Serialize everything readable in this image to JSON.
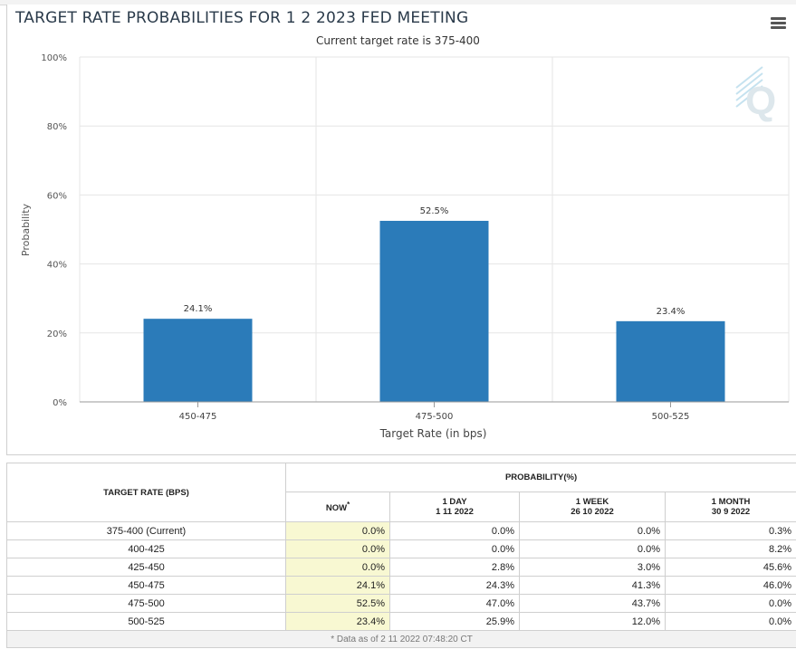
{
  "chart": {
    "title": "TARGET RATE PROBABILITIES FOR 1 2 2023 FED MEETING",
    "subtitle": "Current target rate is 375-400",
    "menu_icon": "hamburger-menu-icon",
    "watermark_icon": "q-logo-icon",
    "bar_color": "#2b7bb9"
  },
  "chart_data": {
    "type": "bar",
    "title": "TARGET RATE PROBABILITIES FOR 1 2 2023 FED MEETING",
    "subtitle": "Current target rate is 375-400",
    "categories": [
      "450-475",
      "475-500",
      "500-525"
    ],
    "values": [
      24.1,
      52.5,
      23.4
    ],
    "data_labels": [
      "24.1%",
      "52.5%",
      "23.4%"
    ],
    "xlabel": "Target Rate (in bps)",
    "ylabel": "Probability",
    "ylim": [
      0,
      100
    ],
    "yticks": [
      0,
      20,
      40,
      60,
      80,
      100
    ],
    "ytick_labels": [
      "0%",
      "20%",
      "40%",
      "60%",
      "80%",
      "100%"
    ],
    "grid": true,
    "legend": "none"
  },
  "table": {
    "target_header": "TARGET RATE (BPS)",
    "prob_header": "PROBABILITY(%)",
    "now_label": "NOW",
    "now_mark": "*",
    "columns": [
      {
        "label": "1 DAY",
        "date": "1 11 2022"
      },
      {
        "label": "1 WEEK",
        "date": "26 10 2022"
      },
      {
        "label": "1 MONTH",
        "date": "30 9 2022"
      }
    ],
    "rows": [
      {
        "rate": "375-400 (Current)",
        "now": "0.0%",
        "day": "0.0%",
        "week": "0.0%",
        "month": "0.3%"
      },
      {
        "rate": "400-425",
        "now": "0.0%",
        "day": "0.0%",
        "week": "0.0%",
        "month": "8.2%"
      },
      {
        "rate": "425-450",
        "now": "0.0%",
        "day": "2.8%",
        "week": "3.0%",
        "month": "45.6%"
      },
      {
        "rate": "450-475",
        "now": "24.1%",
        "day": "24.3%",
        "week": "41.3%",
        "month": "46.0%"
      },
      {
        "rate": "475-500",
        "now": "52.5%",
        "day": "47.0%",
        "week": "43.7%",
        "month": "0.0%"
      },
      {
        "rate": "500-525",
        "now": "23.4%",
        "day": "25.9%",
        "week": "12.0%",
        "month": "0.0%"
      }
    ],
    "footnote": "* Data as of 2 11 2022 07:48:20 CT"
  }
}
